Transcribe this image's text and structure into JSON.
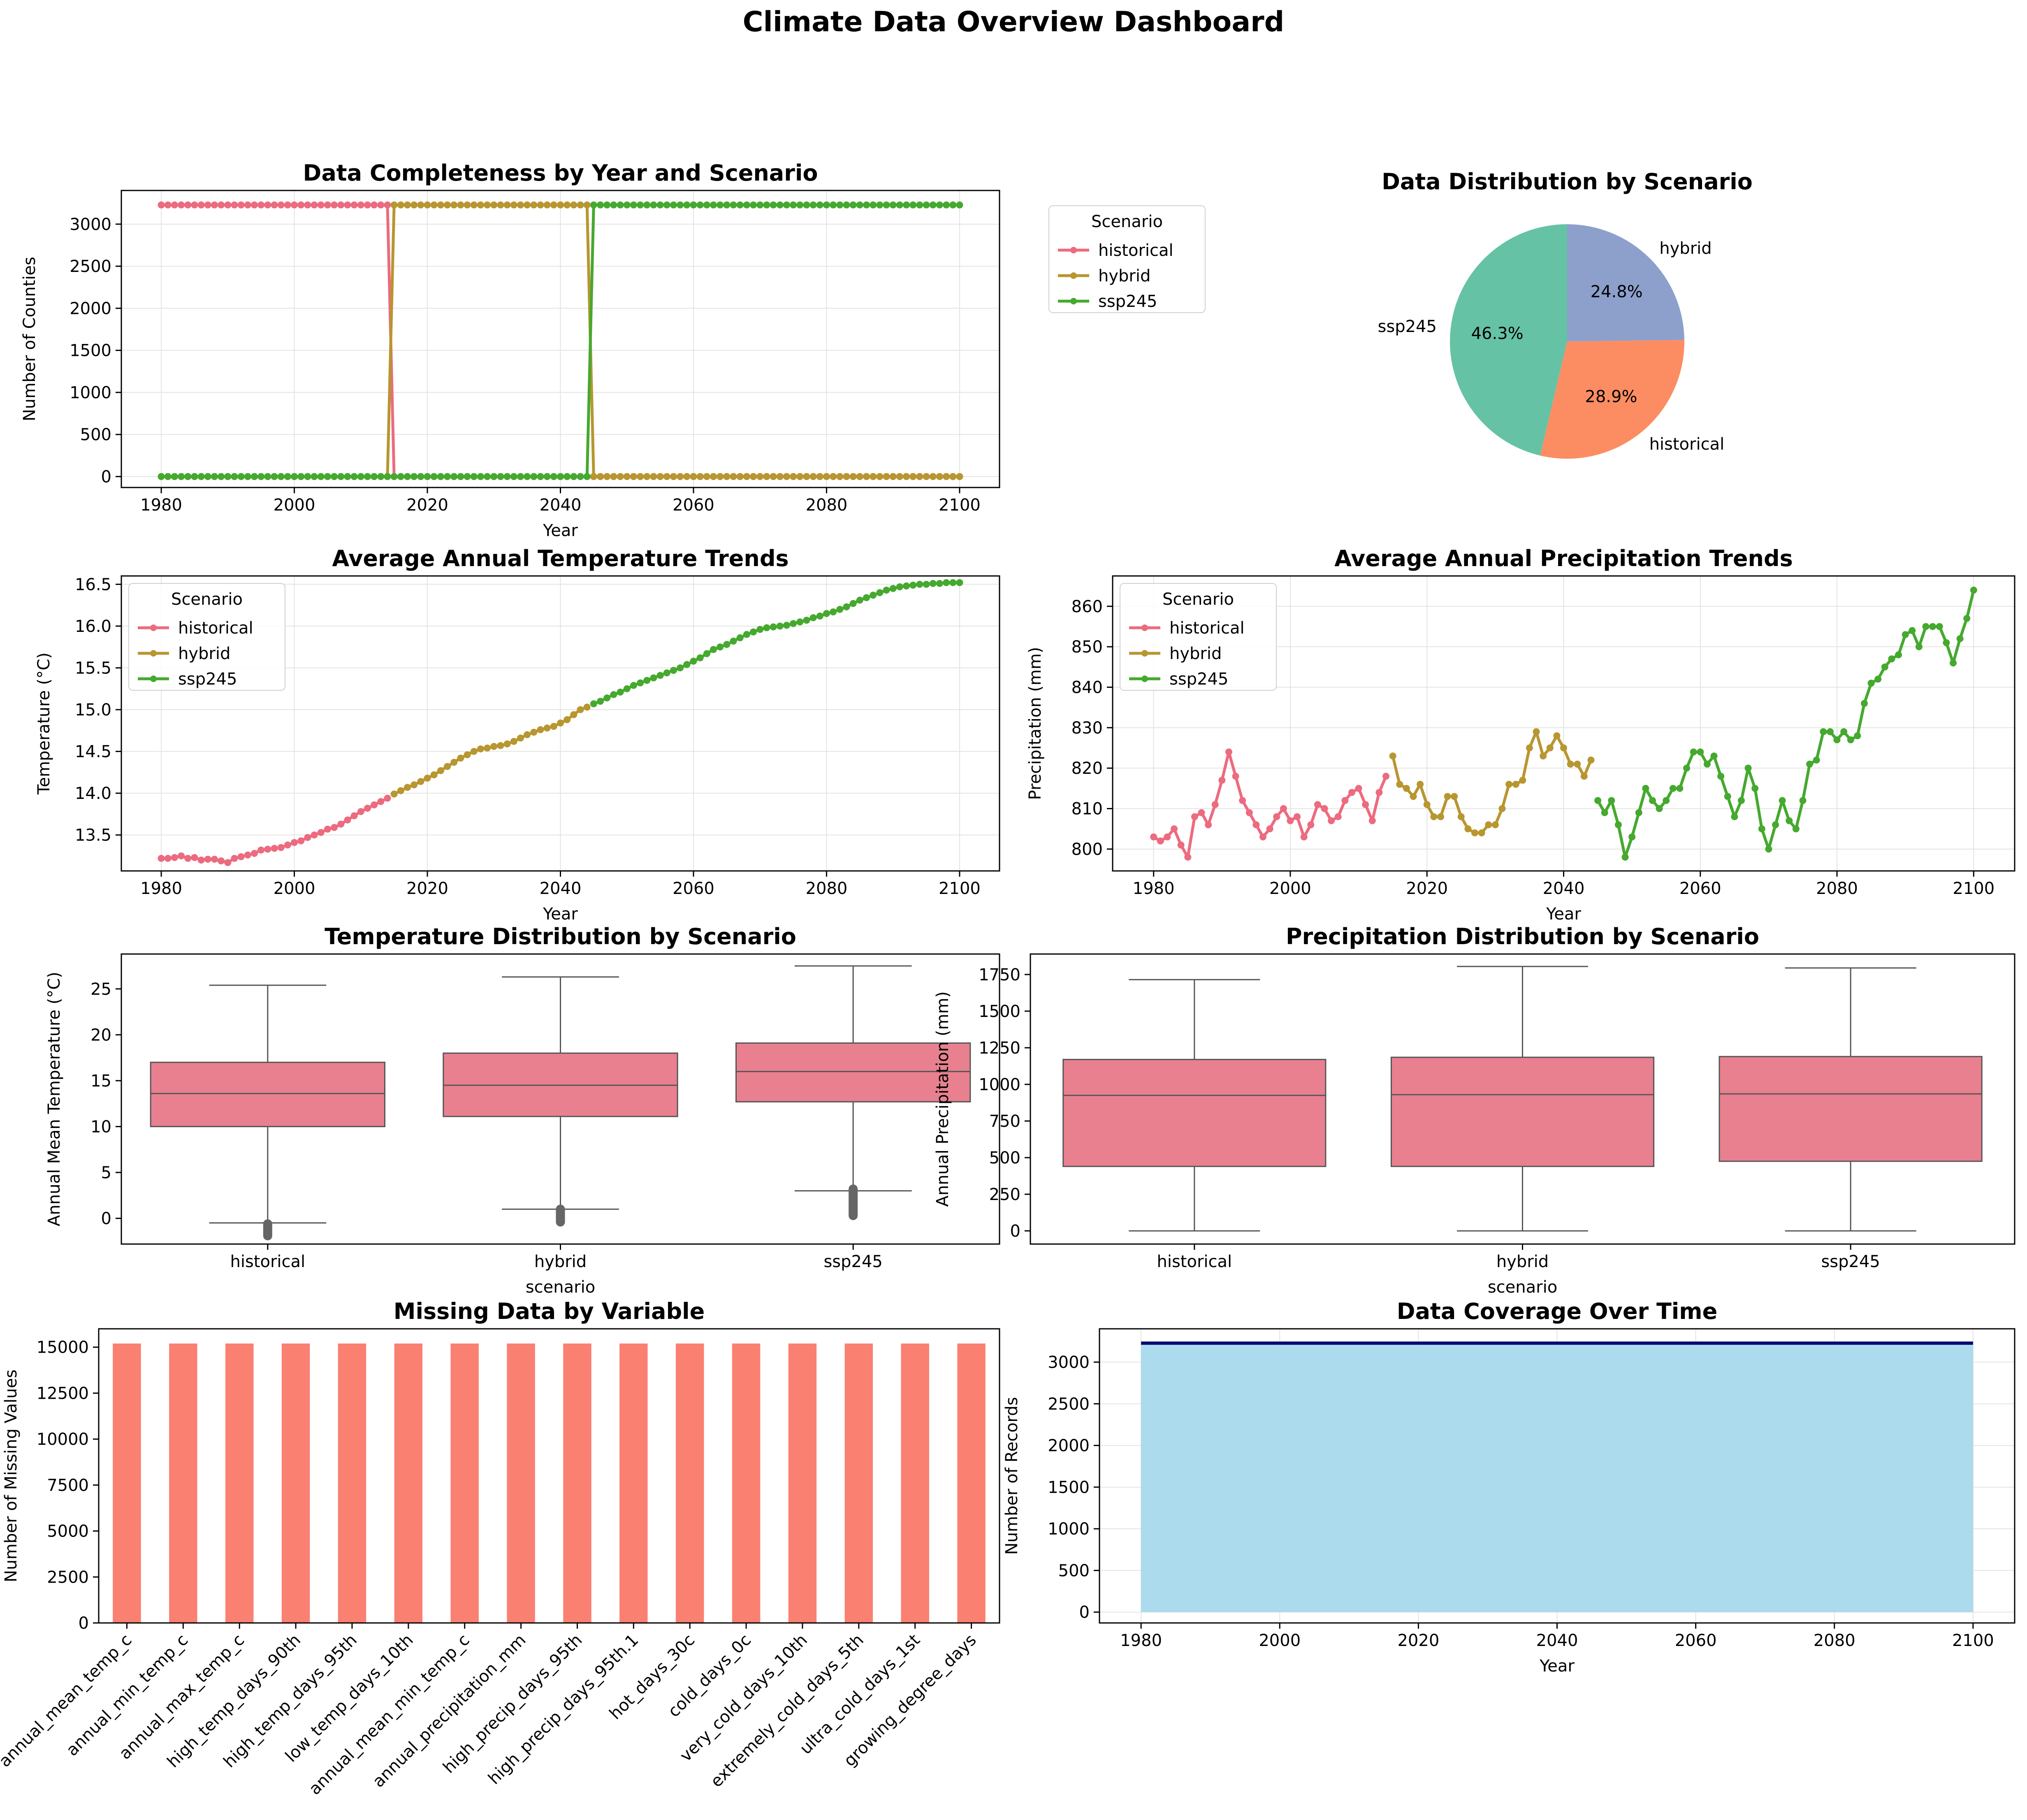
{
  "page_title": "Climate Data Overview Dashboard",
  "colors": {
    "historical": "#ec6b7f",
    "hybrid": "#b89630",
    "ssp245": "#45a92f",
    "box": "#e8808f",
    "bar": "#fa8072",
    "area": "#a8d9ec",
    "area_line": "#0a0a6e",
    "pie_ssp245": "#66c2a5",
    "pie_historical": "#fc8d62",
    "pie_hybrid": "#8da0cb"
  },
  "chart_data": [
    {
      "id": "completeness",
      "type": "line",
      "title": "Data Completeness by Year and Scenario",
      "xlabel": "Year",
      "ylabel": "Number of Counties",
      "xlim": [
        1974,
        2106
      ],
      "ylim": [
        -130,
        3400
      ],
      "xticks": [
        1980,
        2000,
        2020,
        2040,
        2060,
        2080,
        2100
      ],
      "yticks": [
        0,
        500,
        1000,
        1500,
        2000,
        2500,
        3000
      ],
      "grid": true,
      "legend": {
        "title": "Scenario",
        "placement": "outside-right",
        "entries": [
          "historical",
          "hybrid",
          "ssp245"
        ]
      },
      "series": [
        {
          "name": "historical",
          "segments": [
            {
              "x_start": 1980,
              "x_end": 2014,
              "value": 3228
            },
            {
              "x_start": 2015,
              "x_end": 2100,
              "value": 0
            }
          ]
        },
        {
          "name": "hybrid",
          "segments": [
            {
              "x_start": 1980,
              "x_end": 2014,
              "value": 0
            },
            {
              "x_start": 2015,
              "x_end": 2044,
              "value": 3228
            },
            {
              "x_start": 2045,
              "x_end": 2100,
              "value": 0
            }
          ]
        },
        {
          "name": "ssp245",
          "segments": [
            {
              "x_start": 1980,
              "x_end": 2044,
              "value": 0
            },
            {
              "x_start": 2045,
              "x_end": 2100,
              "value": 3228
            }
          ]
        }
      ]
    },
    {
      "id": "pie",
      "type": "pie",
      "title": "Data Distribution by Scenario",
      "slices": [
        {
          "label": "hybrid",
          "value": 24.8,
          "pct": "24.8%"
        },
        {
          "label": "historical",
          "value": 28.9,
          "pct": "28.9%"
        },
        {
          "label": "ssp245",
          "value": 46.3,
          "pct": "46.3%"
        }
      ]
    },
    {
      "id": "temp_trend",
      "type": "line",
      "title": "Average Annual Temperature Trends",
      "xlabel": "Year",
      "ylabel": "Temperature (°C)",
      "xlim": [
        1974,
        2106
      ],
      "ylim": [
        13.07,
        16.6
      ],
      "xticks": [
        1980,
        2000,
        2020,
        2040,
        2060,
        2080,
        2100
      ],
      "yticks": [
        13.5,
        14.0,
        14.5,
        15.0,
        15.5,
        16.0,
        16.5
      ],
      "grid": true,
      "legend": {
        "title": "Scenario",
        "placement": "upper-left",
        "entries": [
          "historical",
          "hybrid",
          "ssp245"
        ]
      },
      "series": [
        {
          "name": "historical",
          "x_start": 1980,
          "values": [
            13.22,
            13.22,
            13.23,
            13.25,
            13.22,
            13.23,
            13.2,
            13.21,
            13.21,
            13.19,
            13.17,
            13.22,
            13.24,
            13.26,
            13.28,
            13.32,
            13.33,
            13.34,
            13.35,
            13.38,
            13.41,
            13.43,
            13.47,
            13.5,
            13.53,
            13.57,
            13.59,
            13.63,
            13.68,
            13.73,
            13.78,
            13.82,
            13.86,
            13.9,
            13.94
          ]
        },
        {
          "name": "hybrid",
          "x_start": 2015,
          "values": [
            13.99,
            14.03,
            14.07,
            14.1,
            14.14,
            14.18,
            14.22,
            14.27,
            14.32,
            14.37,
            14.42,
            14.46,
            14.5,
            14.53,
            14.54,
            14.56,
            14.57,
            14.59,
            14.62,
            14.66,
            14.7,
            14.73,
            14.76,
            14.78,
            14.8,
            14.84,
            14.88,
            14.94,
            15.0,
            15.03
          ]
        },
        {
          "name": "ssp245",
          "x_start": 2045,
          "values": [
            15.07,
            15.1,
            15.14,
            15.18,
            15.21,
            15.25,
            15.29,
            15.32,
            15.35,
            15.38,
            15.41,
            15.44,
            15.47,
            15.5,
            15.54,
            15.58,
            15.62,
            15.67,
            15.72,
            15.75,
            15.78,
            15.82,
            15.86,
            15.9,
            15.93,
            15.96,
            15.98,
            15.99,
            16.0,
            16.01,
            16.03,
            16.05,
            16.07,
            16.1,
            16.12,
            16.15,
            16.17,
            16.2,
            16.23,
            16.27,
            16.31,
            16.34,
            16.37,
            16.4,
            16.43,
            16.45,
            16.47,
            16.48,
            16.49,
            16.5,
            16.5,
            16.51,
            16.51,
            16.52,
            16.52,
            16.52
          ]
        }
      ]
    },
    {
      "id": "precip_trend",
      "type": "line",
      "title": "Average Annual Precipitation Trends",
      "xlabel": "Year",
      "ylabel": "Precipitation (mm)",
      "xlim": [
        1974,
        2106
      ],
      "ylim": [
        794.6,
        867.5
      ],
      "xticks": [
        1980,
        2000,
        2020,
        2040,
        2060,
        2080,
        2100
      ],
      "yticks": [
        800,
        810,
        820,
        830,
        840,
        850,
        860
      ],
      "grid": true,
      "legend": {
        "title": "Scenario",
        "placement": "upper-left",
        "entries": [
          "historical",
          "hybrid",
          "ssp245"
        ]
      },
      "series": [
        {
          "name": "historical",
          "x_start": 1980,
          "values": [
            803,
            802,
            803,
            805,
            801,
            798,
            808,
            809,
            806,
            811,
            817,
            824,
            818,
            812,
            809,
            806,
            803,
            805,
            808,
            810,
            807,
            808,
            803,
            806,
            811,
            810,
            807,
            808,
            812,
            814,
            815,
            811,
            807,
            814,
            818
          ]
        },
        {
          "name": "hybrid",
          "x_start": 2015,
          "values": [
            823,
            816,
            815,
            813,
            816,
            811,
            808,
            808,
            813,
            813,
            808,
            805,
            804,
            804,
            806,
            806,
            810,
            816,
            816,
            817,
            825,
            829,
            823,
            825,
            828,
            825,
            821,
            821,
            818,
            822
          ]
        },
        {
          "name": "ssp245",
          "x_start": 2045,
          "values": [
            812,
            809,
            812,
            806,
            798,
            803,
            809,
            815,
            812,
            810,
            812,
            815,
            815,
            820,
            824,
            824,
            821,
            823,
            818,
            813,
            808,
            812,
            820,
            815,
            805,
            800,
            806,
            812,
            807,
            805,
            812,
            821,
            822,
            829,
            829,
            827,
            829,
            827,
            828,
            836,
            841,
            842,
            845,
            847,
            848,
            853,
            854,
            850,
            855,
            855,
            855,
            851,
            846,
            852,
            857,
            864
          ]
        }
      ]
    },
    {
      "id": "temp_box",
      "type": "box",
      "title": "Temperature Distribution by Scenario",
      "xlabel": "scenario",
      "ylabel": "Annual Mean Temperature (°C)",
      "ylim": [
        -2.8,
        28.8
      ],
      "yticks": [
        0,
        5,
        10,
        15,
        20,
        25
      ],
      "categories": [
        "historical",
        "hybrid",
        "ssp245"
      ],
      "boxes": [
        {
          "whisker_low": -0.5,
          "q1": 10.0,
          "median": 13.6,
          "q3": 17.0,
          "whisker_high": 25.4,
          "outliers_low": -1.9,
          "outliers_high": -0.6
        },
        {
          "whisker_low": 1.0,
          "q1": 11.1,
          "median": 14.5,
          "q3": 18.0,
          "whisker_high": 26.3,
          "outliers_low": -0.4,
          "outliers_high": 1.0
        },
        {
          "whisker_low": 3.0,
          "q1": 12.7,
          "median": 16.0,
          "q3": 19.1,
          "whisker_high": 27.5,
          "outliers_low": 0.3,
          "outliers_high": 3.2
        }
      ]
    },
    {
      "id": "precip_box",
      "type": "box",
      "title": "Precipitation Distribution by Scenario",
      "xlabel": "scenario",
      "ylabel": "Annual Precipitation (mm)",
      "ylim": [
        -90,
        1890
      ],
      "yticks": [
        0,
        250,
        500,
        750,
        1000,
        1250,
        1500,
        1750
      ],
      "categories": [
        "historical",
        "hybrid",
        "ssp245"
      ],
      "boxes": [
        {
          "whisker_low": 0,
          "q1": 440,
          "median": 925,
          "q3": 1170,
          "whisker_high": 1715
        },
        {
          "whisker_low": 0,
          "q1": 440,
          "median": 930,
          "q3": 1185,
          "whisker_high": 1805
        },
        {
          "whisker_low": 0,
          "q1": 475,
          "median": 935,
          "q3": 1190,
          "whisker_high": 1795
        }
      ]
    },
    {
      "id": "missing",
      "type": "bar",
      "title": "Missing Data by Variable",
      "xlabel": "",
      "ylabel": "Number of Missing Values",
      "ylim": [
        0,
        16000
      ],
      "yticks": [
        0,
        2500,
        5000,
        7500,
        10000,
        12500,
        15000
      ],
      "categories": [
        "annual_mean_temp_c",
        "annual_min_temp_c",
        "annual_max_temp_c",
        "high_temp_days_90th",
        "high_temp_days_95th",
        "low_temp_days_10th",
        "annual_mean_min_temp_c",
        "annual_precipitation_mm",
        "high_precip_days_95th",
        "high_precip_days_95th.1",
        "hot_days_30c",
        "cold_days_0c",
        "very_cold_days_10th",
        "extremely_cold_days_5th",
        "ultra_cold_days_1st",
        "growing_degree_days"
      ],
      "values": [
        15200,
        15200,
        15200,
        15200,
        15200,
        15200,
        15200,
        15200,
        15200,
        15200,
        15200,
        15200,
        15200,
        15200,
        15200,
        15200
      ]
    },
    {
      "id": "coverage",
      "type": "area",
      "title": "Data Coverage Over Time",
      "xlabel": "Year",
      "ylabel": "Number of Records",
      "xlim": [
        1974,
        2106
      ],
      "ylim": [
        -130,
        3400
      ],
      "xticks": [
        1980,
        2000,
        2020,
        2040,
        2060,
        2080,
        2100
      ],
      "yticks": [
        0,
        500,
        1000,
        1500,
        2000,
        2500,
        3000
      ],
      "grid": true,
      "x_start": 1980,
      "x_end": 2100,
      "value": 3228
    }
  ]
}
